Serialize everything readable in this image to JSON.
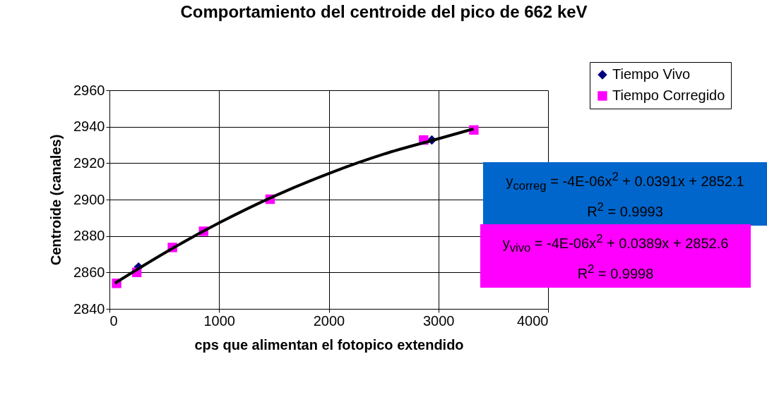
{
  "chart_data": {
    "type": "scatter",
    "title": "Comportamiento del centroide del pico de 662 keV",
    "xlabel": "cps que alimentan el fotopico extendido",
    "ylabel": "Centroide (canales)",
    "xlim": [
      0,
      4000
    ],
    "xticks": [
      0,
      1000,
      2000,
      3000,
      4000
    ],
    "ylim": [
      2840,
      2960
    ],
    "yticks": [
      2840,
      2860,
      2880,
      2900,
      2920,
      2940,
      2960
    ],
    "grid": true,
    "legend": "top right",
    "series": [
      {
        "type": "line",
        "color": "#000000",
        "x": [
          50,
          500,
          1000,
          1500,
          2000,
          2500,
          3000,
          3320
        ],
        "values": [
          2854.1,
          2870.6,
          2887.2,
          2901.8,
          2914.3,
          2924.9,
          2933.4,
          2938.8
        ]
      },
      {
        "name": "Tiempo Vivo",
        "color": "#000080",
        "marker": "diamond",
        "x": [
          265,
          2940
        ],
        "values": [
          2863,
          2932.7
        ]
      },
      {
        "name": "Tiempo Corregido",
        "color": "#ff00ff",
        "marker": "square",
        "x": [
          65,
          249,
          574,
          858,
          1465,
          2865,
          3323
        ],
        "values": [
          2854,
          2860,
          2873.7,
          2882.6,
          2900.2,
          2932.7,
          2938.2
        ]
      }
    ],
    "annotations": [
      "y$_{correg}$ = -4E-06x$^{2}$ + 0.0391x + 2852.1\nR$^{2}$ = 0.9993",
      "y$_{vivo}$ = -4E-06x$^{2}$ + 0.0389x + 2852.6\nR$^{2}$ = 0.9998"
    ]
  }
}
